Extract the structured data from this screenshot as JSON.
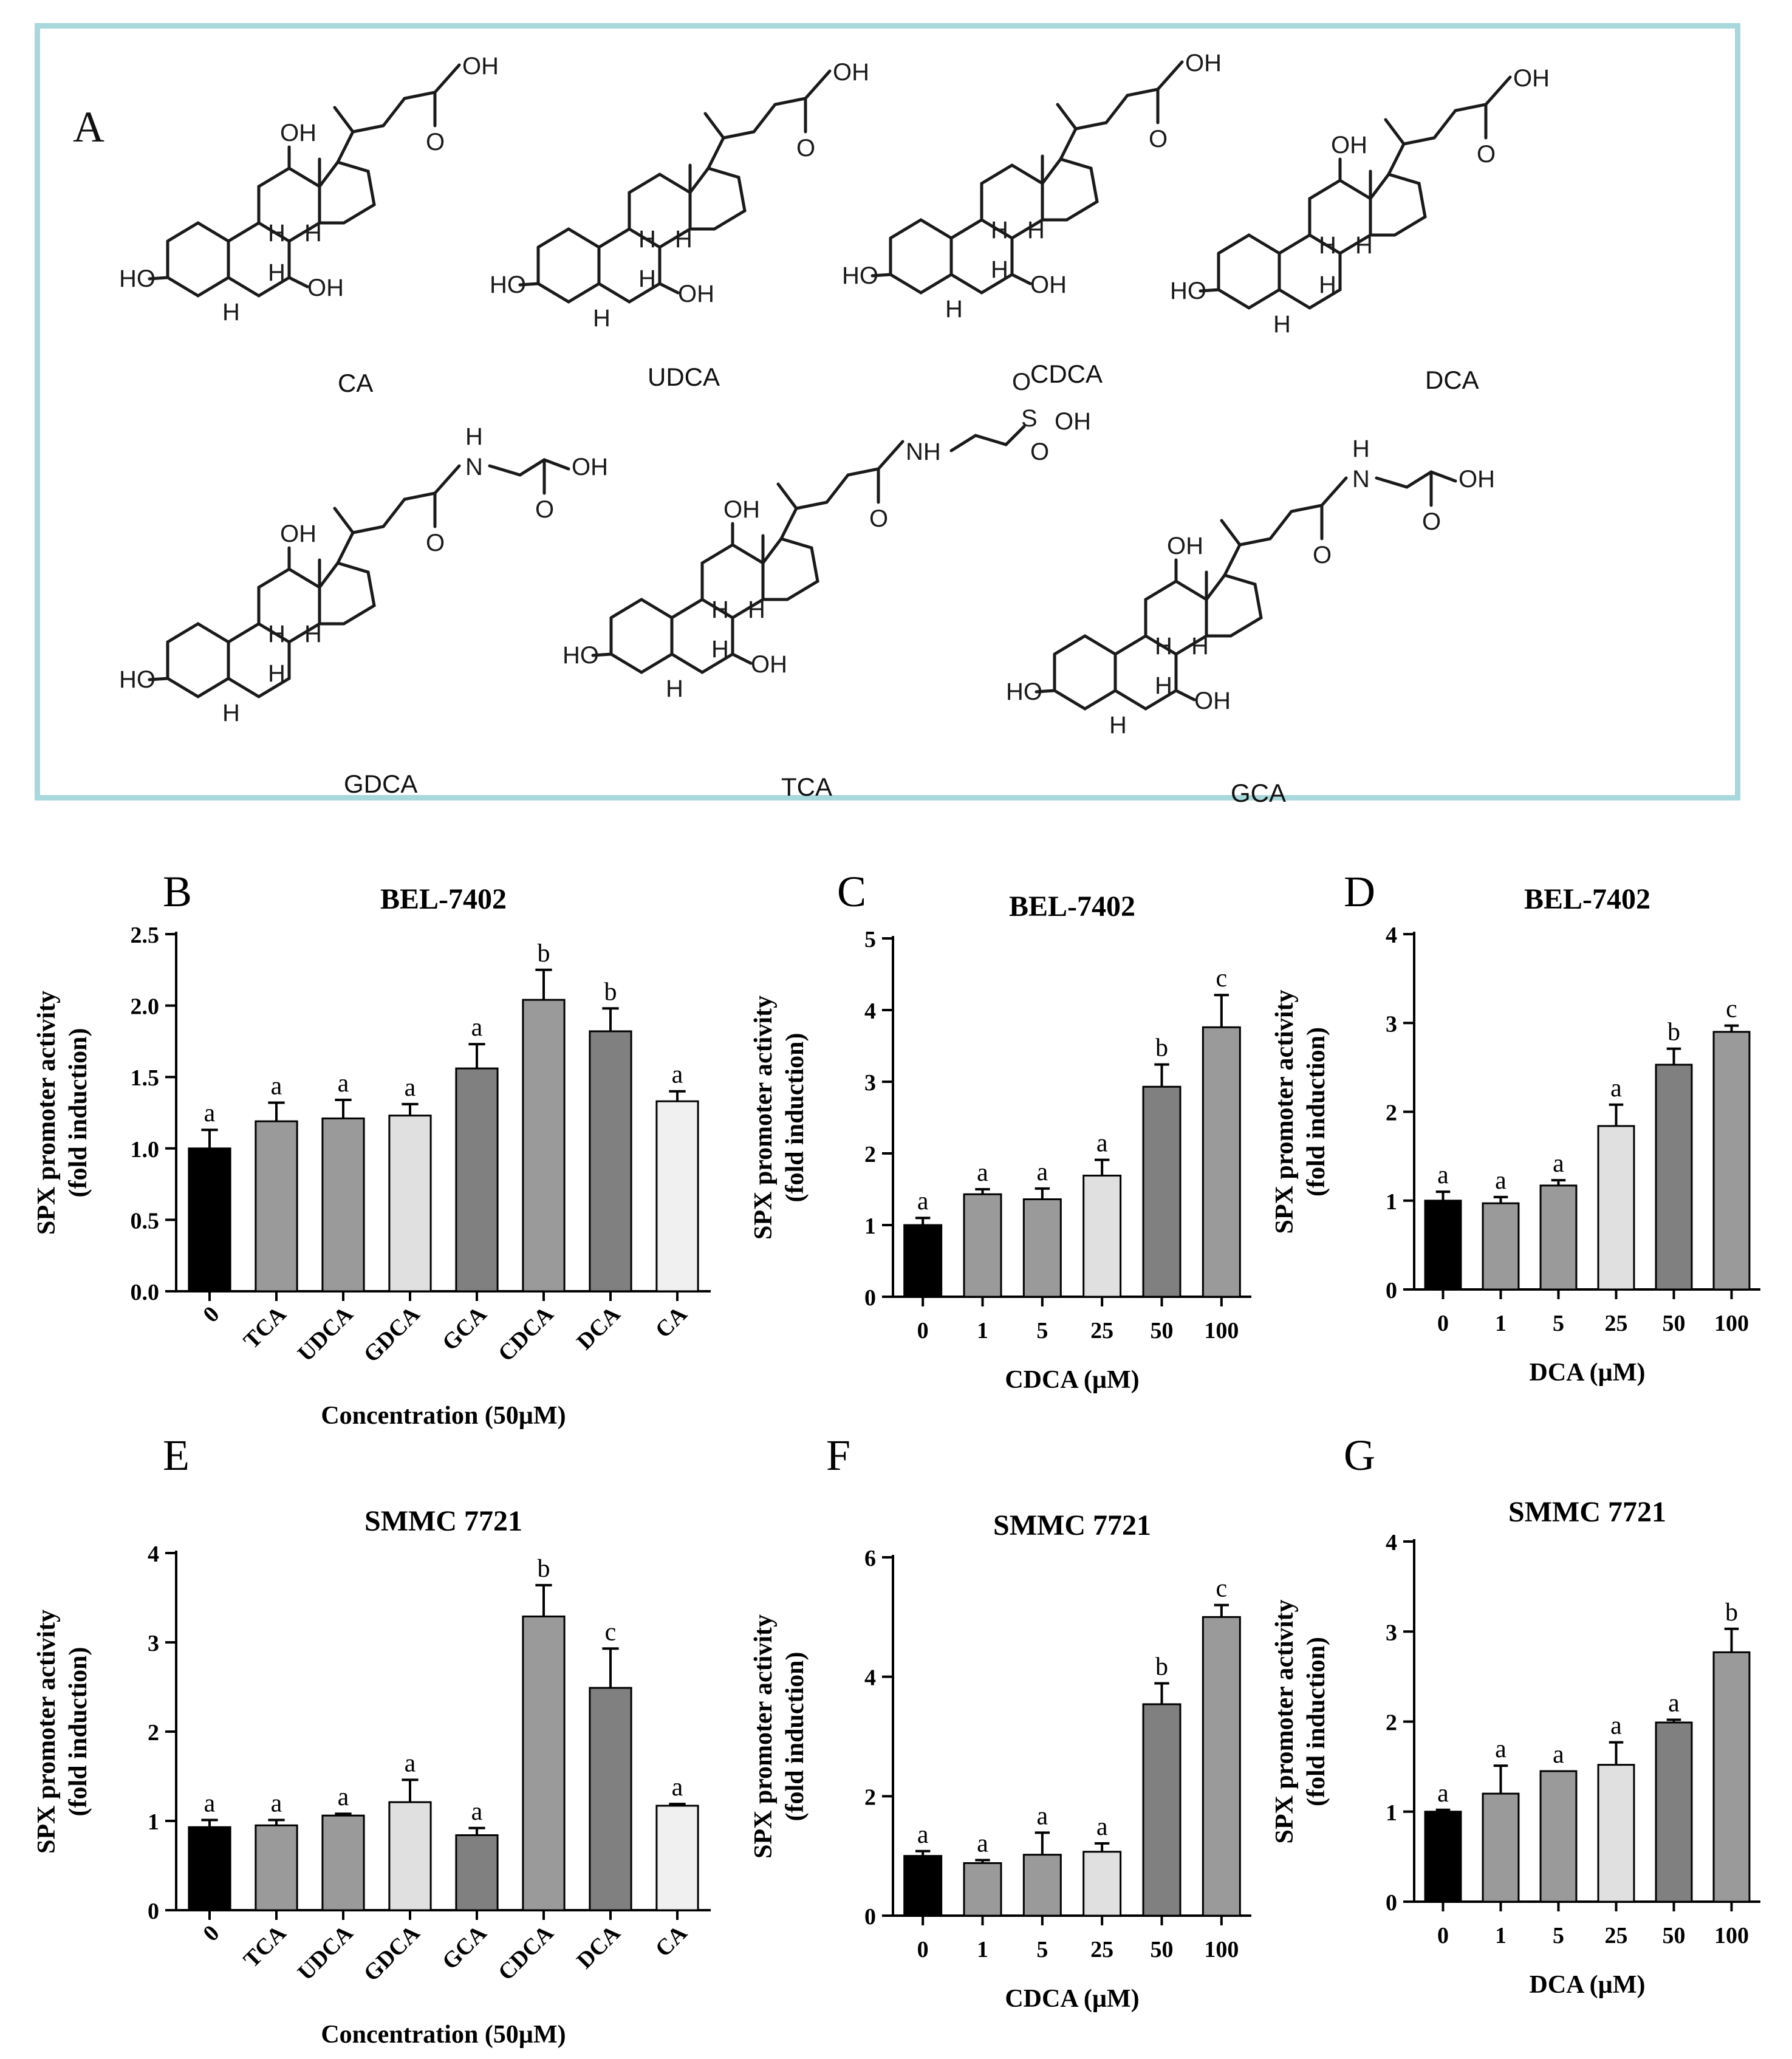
{
  "panel_a": {
    "letter": "A",
    "molecules": [
      {
        "name": "CA"
      },
      {
        "name": "UDCA"
      },
      {
        "name": "CDCA"
      },
      {
        "name": "DCA"
      },
      {
        "name": "GDCA"
      },
      {
        "name": "TCA"
      },
      {
        "name": "GCA"
      }
    ],
    "atom_labels": {
      "oh": "OH",
      "ho": "HO",
      "h": "H",
      "o": "O",
      "nh": "NH",
      "s": "S",
      "n": "N"
    }
  },
  "colors": {
    "black": "#000000",
    "mid": "#9a9a9a",
    "dark": "#808080",
    "light": "#e0e0e0",
    "lighter": "#f0f0f0",
    "frame": "#a9d8dc"
  },
  "chart_data": [
    {
      "panel": "B",
      "type": "bar",
      "title": "BEL-7402",
      "ylabel": "SPX promoter activity",
      "ylabel2": "(fold induction)",
      "xlabel": "Concentration (50µM)",
      "categories": [
        "0",
        "TCA",
        "UDCA",
        "GDCA",
        "GCA",
        "CDCA",
        "DCA",
        "CA"
      ],
      "values": [
        1.0,
        1.19,
        1.21,
        1.23,
        1.56,
        2.04,
        1.82,
        1.33
      ],
      "errors": [
        0.13,
        0.13,
        0.13,
        0.08,
        0.17,
        0.21,
        0.16,
        0.07
      ],
      "letters": [
        "a",
        "a",
        "a",
        "a",
        "a",
        "b",
        "b",
        "a"
      ],
      "fills": [
        "black",
        "mid",
        "mid",
        "light",
        "dark",
        "mid",
        "dark",
        "lighter"
      ],
      "ylim": [
        0,
        2.5
      ],
      "yticks": [
        0.0,
        0.5,
        1.0,
        1.5,
        2.0,
        2.5
      ],
      "ytick_labels": [
        "0.0",
        "0.5",
        "1.0",
        "1.5",
        "2.0",
        "2.5"
      ],
      "rotate": true
    },
    {
      "panel": "C",
      "type": "bar",
      "title": "BEL-7402",
      "ylabel": "SPX promoter activity",
      "ylabel2": "(fold induction)",
      "xlabel": "CDCA (µM)",
      "categories": [
        "0",
        "1",
        "5",
        "25",
        "50",
        "100"
      ],
      "values": [
        1.0,
        1.43,
        1.36,
        1.69,
        2.93,
        3.76
      ],
      "errors": [
        0.1,
        0.07,
        0.15,
        0.22,
        0.31,
        0.45
      ],
      "letters": [
        "a",
        "a",
        "a",
        "a",
        "b",
        "c"
      ],
      "fills": [
        "black",
        "mid",
        "mid",
        "light",
        "dark",
        "mid"
      ],
      "ylim": [
        0,
        5
      ],
      "yticks": [
        0,
        1,
        2,
        3,
        4,
        5
      ],
      "ytick_labels": [
        "0",
        "1",
        "2",
        "3",
        "4",
        "5"
      ],
      "rotate": false
    },
    {
      "panel": "D",
      "type": "bar",
      "title": "BEL-7402",
      "ylabel": "SPX promoter activity",
      "ylabel2": "(fold induction)",
      "xlabel": "DCA (µM)",
      "categories": [
        "0",
        "1",
        "5",
        "25",
        "50",
        "100"
      ],
      "values": [
        1.0,
        0.97,
        1.17,
        1.84,
        2.53,
        2.9
      ],
      "errors": [
        0.1,
        0.07,
        0.06,
        0.24,
        0.18,
        0.07
      ],
      "letters": [
        "a",
        "a",
        "a",
        "a",
        "b",
        "c"
      ],
      "fills": [
        "black",
        "mid",
        "mid",
        "light",
        "dark",
        "mid"
      ],
      "ylim": [
        0,
        4
      ],
      "yticks": [
        0,
        1,
        2,
        3,
        4
      ],
      "ytick_labels": [
        "0",
        "1",
        "2",
        "3",
        "4"
      ],
      "rotate": false
    },
    {
      "panel": "E",
      "type": "bar",
      "title": "SMMC 7721",
      "ylabel": "SPX promoter activity",
      "ylabel2": "(fold induction)",
      "xlabel": "Concentration (50µM)",
      "categories": [
        "0",
        "TCA",
        "UDCA",
        "GDCA",
        "GCA",
        "CDCA",
        "DCA",
        "CA"
      ],
      "values": [
        0.93,
        0.95,
        1.06,
        1.21,
        0.84,
        3.29,
        2.49,
        1.17
      ],
      "errors": [
        0.08,
        0.06,
        0.02,
        0.25,
        0.08,
        0.35,
        0.44,
        0.02
      ],
      "letters": [
        "a",
        "a",
        "a",
        "a",
        "a",
        "b",
        "c",
        "a"
      ],
      "fills": [
        "black",
        "mid",
        "mid",
        "light",
        "dark",
        "mid",
        "dark",
        "lighter"
      ],
      "ylim": [
        0,
        4
      ],
      "yticks": [
        0,
        1,
        2,
        3,
        4
      ],
      "ytick_labels": [
        "0",
        "1",
        "2",
        "3",
        "4"
      ],
      "rotate": true
    },
    {
      "panel": "F",
      "type": "bar",
      "title": "SMMC 7721",
      "ylabel": "SPX promoter activity",
      "ylabel2": "(fold induction)",
      "xlabel": "CDCA (µM)",
      "categories": [
        "0",
        "1",
        "5",
        "25",
        "50",
        "100"
      ],
      "values": [
        1.0,
        0.88,
        1.02,
        1.07,
        3.54,
        5.0
      ],
      "errors": [
        0.08,
        0.05,
        0.37,
        0.14,
        0.35,
        0.2
      ],
      "letters": [
        "a",
        "a",
        "a",
        "a",
        "b",
        "c"
      ],
      "fills": [
        "black",
        "mid",
        "mid",
        "light",
        "dark",
        "mid"
      ],
      "ylim": [
        0,
        6
      ],
      "yticks": [
        0,
        2,
        4,
        6
      ],
      "ytick_labels": [
        "0",
        "2",
        "4",
        "6"
      ],
      "rotate": false
    },
    {
      "panel": "G",
      "type": "bar",
      "title": "SMMC 7721",
      "ylabel": "SPX promoter activity",
      "ylabel2": "(fold induction)",
      "xlabel": "DCA (µM)",
      "categories": [
        "0",
        "1",
        "5",
        "25",
        "50",
        "100"
      ],
      "values": [
        1.0,
        1.2,
        1.45,
        1.52,
        1.99,
        2.77
      ],
      "errors": [
        0.02,
        0.31,
        0.0,
        0.25,
        0.03,
        0.26
      ],
      "letters": [
        "a",
        "a",
        "a",
        "a",
        "a",
        "b"
      ],
      "fills": [
        "black",
        "mid",
        "mid",
        "light",
        "dark",
        "mid"
      ],
      "ylim": [
        0,
        4
      ],
      "yticks": [
        0,
        1,
        2,
        3,
        4
      ],
      "ytick_labels": [
        "0",
        "1",
        "2",
        "3",
        "4"
      ],
      "rotate": false
    }
  ]
}
